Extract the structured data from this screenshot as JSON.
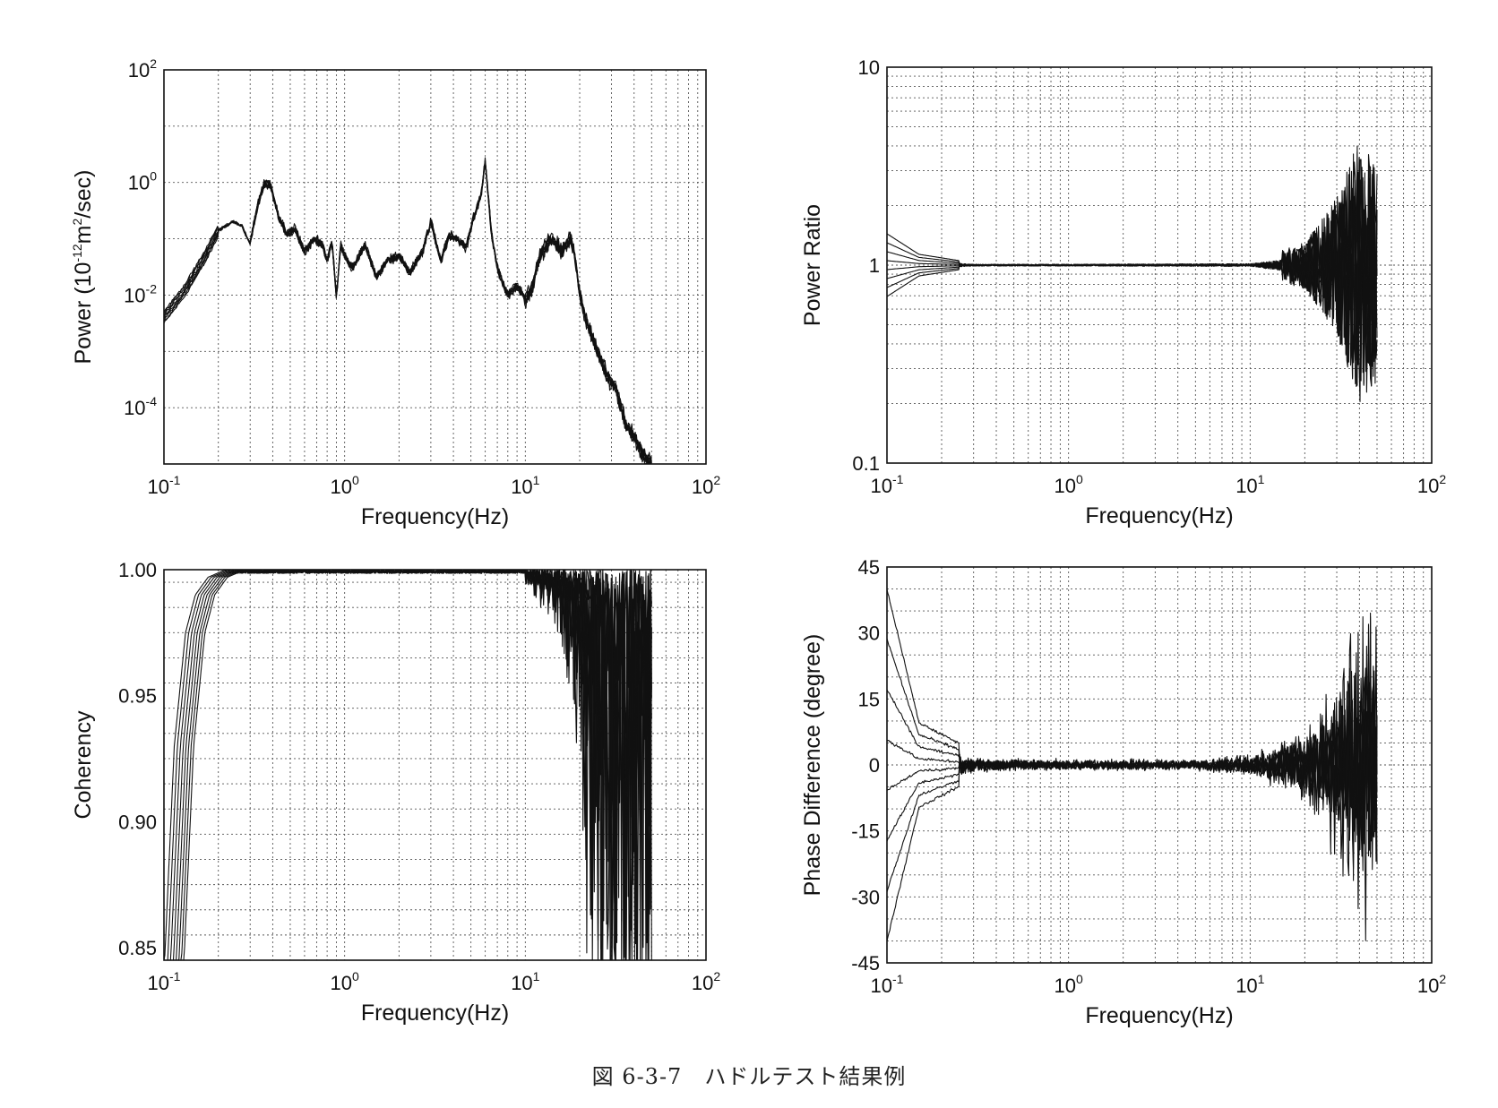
{
  "caption": "図 6-3-7　ハドルテスト結果例",
  "chart_data": [
    {
      "id": "power",
      "type": "line",
      "title": "",
      "xlabel": "Frequency(Hz)",
      "ylabel_parts": [
        "Power (10",
        "-12",
        "m",
        "2",
        "/sec)"
      ],
      "xscale": "log",
      "yscale": "log",
      "xlim": [
        0.1,
        100
      ],
      "ylim": [
        1e-05,
        100
      ],
      "x_ticks": [
        {
          "base": "10",
          "exp": "-1",
          "v": 0.1
        },
        {
          "base": "10",
          "exp": "0",
          "v": 1
        },
        {
          "base": "10",
          "exp": "1",
          "v": 10
        },
        {
          "base": "10",
          "exp": "2",
          "v": 100
        }
      ],
      "y_ticks": [
        {
          "base": "10",
          "exp": "-4",
          "v": 0.0001
        },
        {
          "base": "10",
          "exp": "-2",
          "v": 0.01
        },
        {
          "base": "10",
          "exp": "0",
          "v": 1
        },
        {
          "base": "10",
          "exp": "2",
          "v": 100
        }
      ],
      "grid": true,
      "n_series": 8,
      "x": [
        0.1,
        0.13,
        0.17,
        0.2,
        0.24,
        0.27,
        0.3,
        0.33,
        0.36,
        0.39,
        0.43,
        0.48,
        0.53,
        0.6,
        0.68,
        0.75,
        0.8,
        0.85,
        0.9,
        0.95,
        1.0,
        1.1,
        1.3,
        1.5,
        1.7,
        2.0,
        2.3,
        2.7,
        3.0,
        3.4,
        3.8,
        4.2,
        4.7,
        5.2,
        5.7,
        6.0,
        6.5,
        7.0,
        8.0,
        9.0,
        10,
        11,
        12,
        14,
        16,
        18,
        19,
        20,
        22,
        25,
        28,
        32,
        36,
        40,
        45,
        50
      ],
      "y": [
        0.004,
        0.012,
        0.05,
        0.14,
        0.2,
        0.17,
        0.08,
        0.4,
        1.0,
        0.9,
        0.25,
        0.12,
        0.15,
        0.06,
        0.1,
        0.08,
        0.04,
        0.09,
        0.009,
        0.08,
        0.05,
        0.03,
        0.08,
        0.02,
        0.04,
        0.05,
        0.025,
        0.06,
        0.2,
        0.04,
        0.12,
        0.1,
        0.07,
        0.25,
        0.6,
        2.5,
        0.12,
        0.03,
        0.01,
        0.015,
        0.008,
        0.015,
        0.05,
        0.1,
        0.06,
        0.1,
        0.04,
        0.01,
        0.003,
        0.001,
        0.0004,
        0.0002,
        5e-05,
        3e-05,
        1.5e-05,
        1e-05
      ]
    },
    {
      "id": "ratio",
      "type": "line",
      "title": "",
      "xlabel": "Frequency(Hz)",
      "ylabel": "Power Ratio",
      "xscale": "log",
      "yscale": "log",
      "xlim": [
        0.1,
        100
      ],
      "ylim": [
        0.1,
        10
      ],
      "x_ticks": [
        {
          "base": "10",
          "exp": "-1",
          "v": 0.1
        },
        {
          "base": "10",
          "exp": "0",
          "v": 1
        },
        {
          "base": "10",
          "exp": "1",
          "v": 10
        },
        {
          "base": "10",
          "exp": "2",
          "v": 100
        }
      ],
      "y_ticks": [
        {
          "base": "0.1",
          "exp": "",
          "v": 0.1
        },
        {
          "base": "1",
          "exp": "",
          "v": 1
        },
        {
          "base": "10",
          "exp": "",
          "v": 10
        }
      ],
      "grid": true,
      "n_series": 8,
      "baseline": 1.0,
      "spread_low": [
        [
          0.1,
          0.7
        ],
        [
          0.15,
          0.9
        ],
        [
          0.3,
          0.97
        ],
        [
          1,
          0.97
        ],
        [
          10,
          0.96
        ],
        [
          20,
          0.75
        ],
        [
          30,
          0.45
        ],
        [
          40,
          0.2
        ],
        [
          50,
          0.25
        ]
      ],
      "spread_high": [
        [
          0.1,
          1.5
        ],
        [
          0.15,
          1.15
        ],
        [
          0.3,
          1.03
        ],
        [
          1,
          1.03
        ],
        [
          10,
          1.05
        ],
        [
          20,
          1.3
        ],
        [
          30,
          2.2
        ],
        [
          40,
          4.5
        ],
        [
          50,
          3.0
        ]
      ]
    },
    {
      "id": "coherency",
      "type": "line",
      "title": "",
      "xlabel": "Frequency(Hz)",
      "ylabel": "Coherency",
      "xscale": "log",
      "yscale": "linear",
      "xlim": [
        0.1,
        100
      ],
      "ylim": [
        0.845,
        1.0
      ],
      "x_ticks": [
        {
          "base": "10",
          "exp": "-1",
          "v": 0.1
        },
        {
          "base": "10",
          "exp": "0",
          "v": 1
        },
        {
          "base": "10",
          "exp": "1",
          "v": 10
        },
        {
          "base": "10",
          "exp": "2",
          "v": 100
        }
      ],
      "y_ticks": [
        {
          "base": "0.85",
          "exp": "",
          "v": 0.85
        },
        {
          "base": "0.90",
          "exp": "",
          "v": 0.9
        },
        {
          "base": "0.95",
          "exp": "",
          "v": 0.95
        },
        {
          "base": "1.00",
          "exp": "",
          "v": 1.0
        }
      ],
      "grid": true,
      "n_series": 8,
      "rise_x": [
        0.115,
        0.13,
        0.15,
        0.17,
        0.2,
        0.25
      ],
      "rise_y": [
        0.845,
        0.93,
        0.975,
        0.99,
        0.997,
        1.0
      ],
      "noise_band_low": [
        [
          10,
          0.995
        ],
        [
          15,
          0.985
        ],
        [
          20,
          0.95
        ],
        [
          22,
          0.9
        ],
        [
          28,
          0.85
        ],
        [
          50,
          0.85
        ]
      ]
    },
    {
      "id": "phase",
      "type": "line",
      "title": "",
      "xlabel": "Frequency(Hz)",
      "ylabel": "Phase Difference (degree)",
      "xscale": "log",
      "yscale": "linear",
      "xlim": [
        0.1,
        100
      ],
      "ylim": [
        -45,
        45
      ],
      "x_ticks": [
        {
          "base": "10",
          "exp": "-1",
          "v": 0.1
        },
        {
          "base": "10",
          "exp": "0",
          "v": 1
        },
        {
          "base": "10",
          "exp": "1",
          "v": 10
        },
        {
          "base": "10",
          "exp": "2",
          "v": 100
        }
      ],
      "y_ticks": [
        {
          "base": "-45",
          "exp": "",
          "v": -45
        },
        {
          "base": "-30",
          "exp": "",
          "v": -30
        },
        {
          "base": "-15",
          "exp": "",
          "v": -15
        },
        {
          "base": "0",
          "exp": "",
          "v": 0
        },
        {
          "base": "15",
          "exp": "",
          "v": 15
        },
        {
          "base": "30",
          "exp": "",
          "v": 30
        },
        {
          "base": "45",
          "exp": "",
          "v": 45
        }
      ],
      "grid": true,
      "n_series": 8,
      "baseline": 0,
      "spread": [
        [
          0.1,
          25
        ],
        [
          0.15,
          6
        ],
        [
          0.3,
          2
        ],
        [
          1,
          1.5
        ],
        [
          5,
          1.5
        ],
        [
          10,
          3
        ],
        [
          20,
          10
        ],
        [
          30,
          25
        ],
        [
          40,
          45
        ],
        [
          50,
          40
        ]
      ]
    }
  ]
}
